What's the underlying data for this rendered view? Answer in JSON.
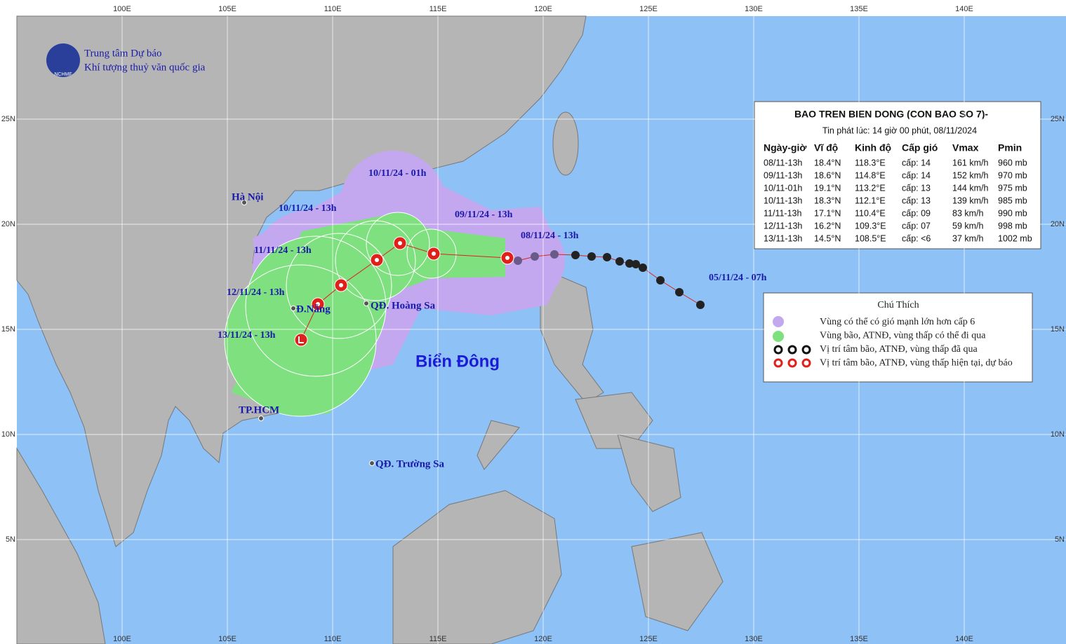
{
  "header": {
    "org_line1": "Trung tâm Dự báo",
    "org_line2": "Khí tượng thuỷ văn quốc gia",
    "logo": "NCHMF"
  },
  "axes": {
    "longitude": [
      "100E",
      "105E",
      "110E",
      "115E",
      "120E",
      "125E",
      "130E",
      "135E",
      "140E"
    ],
    "latitude": [
      "25N",
      "20N",
      "15N",
      "10N",
      "5N"
    ]
  },
  "info_box": {
    "title": "BAO TREN BIEN DONG (CON BAO SO 7)-",
    "issued": "Tin phát lúc: 14 giờ 00 phút, 08/11/2024",
    "columns": [
      "Ngày-giờ",
      "Vĩ độ",
      "Kinh độ",
      "Cấp gió",
      "Vmax",
      "Pmin"
    ],
    "rows": [
      [
        "08/11-13h",
        "18.4°N",
        "118.3°E",
        "cấp: 14",
        "161 km/h",
        "960 mb"
      ],
      [
        "09/11-13h",
        "18.6°N",
        "114.8°E",
        "cấp: 14",
        "152 km/h",
        "970 mb"
      ],
      [
        "10/11-01h",
        "19.1°N",
        "113.2°E",
        "cấp: 13",
        "144 km/h",
        "975 mb"
      ],
      [
        "10/11-13h",
        "18.3°N",
        "112.1°E",
        "cấp: 13",
        "139 km/h",
        "985 mb"
      ],
      [
        "11/11-13h",
        "17.1°N",
        "110.4°E",
        "cấp: 09",
        "83 km/h",
        "990 mb"
      ],
      [
        "12/11-13h",
        "16.2°N",
        "109.3°E",
        "cấp: 07",
        "59 km/h",
        "998 mb"
      ],
      [
        "13/11-13h",
        "14.5°N",
        "108.5°E",
        "cấp: <6",
        "37 km/h",
        "1002 mb"
      ]
    ]
  },
  "legend": {
    "title": "Chú Thích",
    "items": [
      "Vùng có thể có gió mạnh lớn hơn cấp 6",
      "Vùng bão, ATNĐ, vùng thấp có thể đi qua",
      "Vị trí tâm bão, ATNĐ, vùng thấp đã qua",
      "Vị trí tâm bão, ATNĐ, vùng thấp hiện tại, dự báo"
    ]
  },
  "places": [
    "Hà Nội",
    "Đ.Nẵng",
    "QĐ. Hoàng Sa",
    "TP.HCM",
    "QĐ. Trường Sa"
  ],
  "track_labels": [
    "10/11/24 - 01h",
    "10/11/24 - 13h",
    "11/11/24 - 13h",
    "12/11/24 - 13h",
    "13/11/24 - 13h",
    "09/11/24 - 13h",
    "08/11/24 - 13h",
    "05/11/24 - 07h"
  ],
  "sea_label": "Biển Đông"
}
